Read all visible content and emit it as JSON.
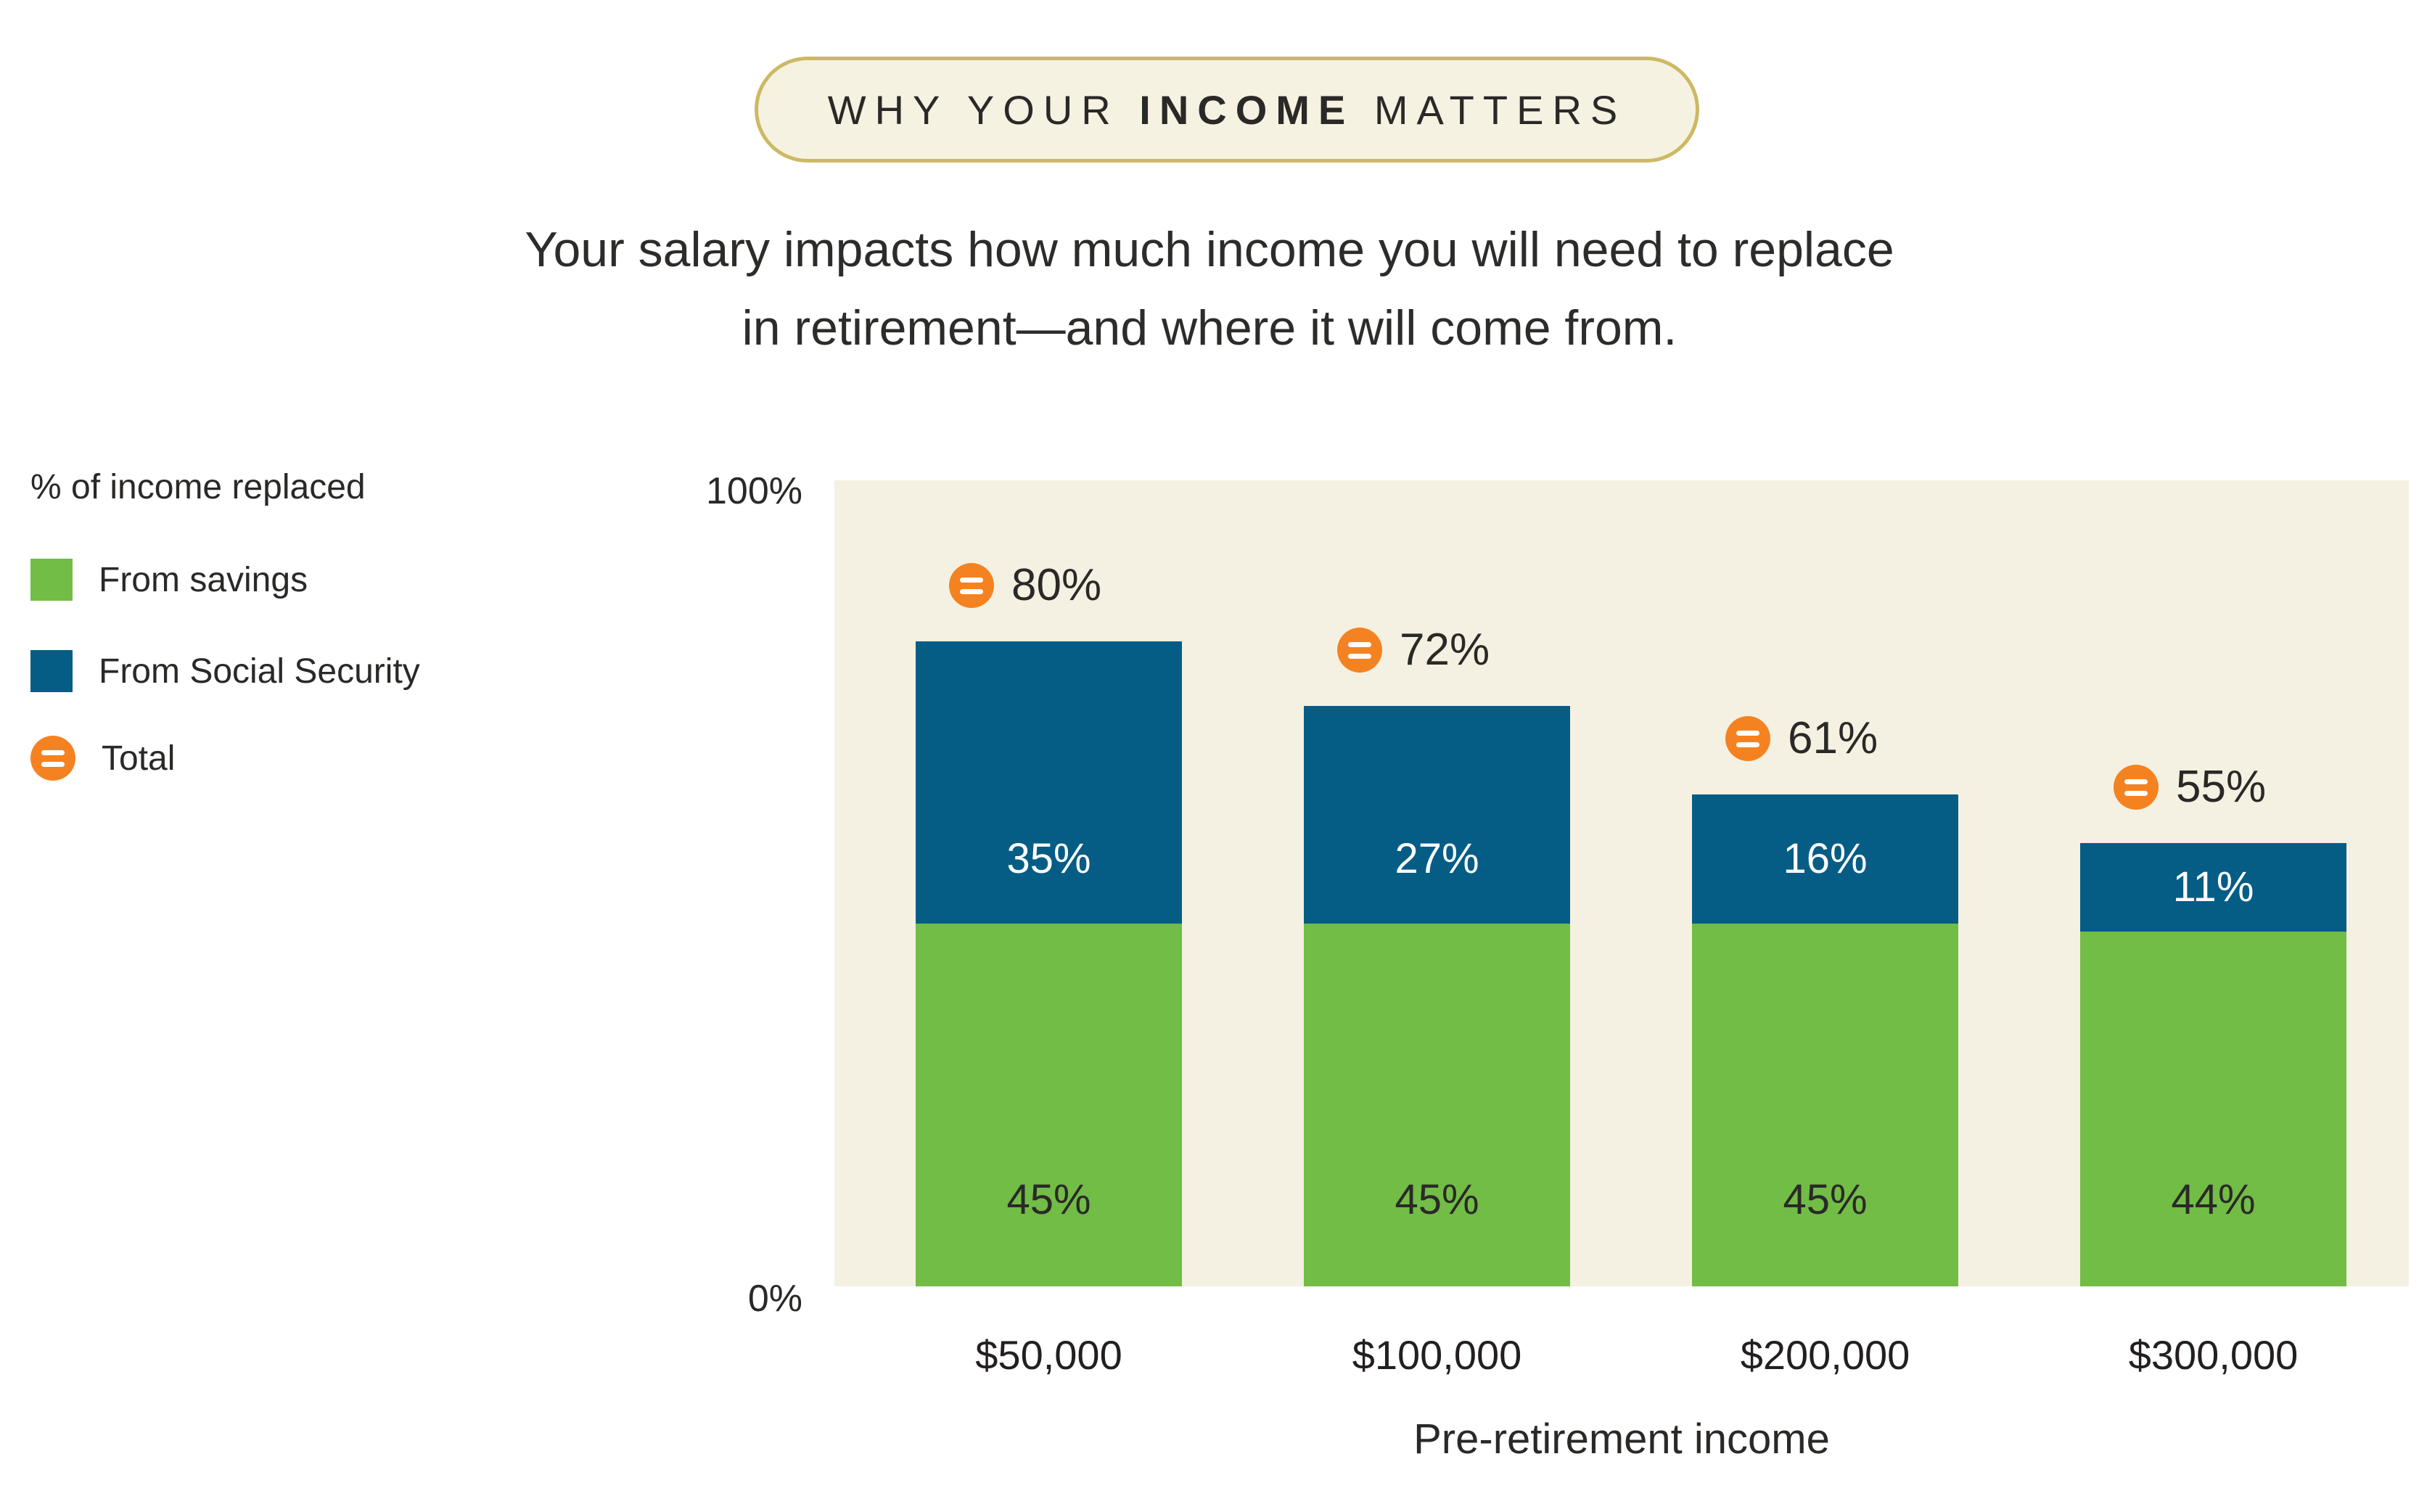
{
  "badge": {
    "prefix": "WHY YOUR ",
    "emphasis": "INCOME",
    "suffix": " MATTERS"
  },
  "headline": {
    "line1": "Your salary impacts how much income you will need to replace",
    "line2": "in retirement—and where it will come from."
  },
  "legend": {
    "title": "% of income replaced",
    "items": [
      {
        "label": "From savings",
        "swatch": "square",
        "color": "#71bd46"
      },
      {
        "label": "From Social Security",
        "swatch": "square",
        "color": "#055d85"
      },
      {
        "label": "Total",
        "swatch": "equals-circle",
        "color": "#f58220"
      }
    ]
  },
  "chart_data": {
    "type": "bar",
    "subtype": "stacked-bar",
    "categories": [
      "$50,000",
      "$100,000",
      "$200,000",
      "$300,000"
    ],
    "series": [
      {
        "name": "From savings",
        "color": "#71bd46",
        "values": [
          45,
          45,
          45,
          44
        ],
        "labels": [
          "45%",
          "45%",
          "45%",
          "44%"
        ]
      },
      {
        "name": "From Social Security",
        "color": "#055d85",
        "values": [
          35,
          27,
          16,
          11
        ],
        "labels": [
          "35%",
          "27%",
          "16%",
          "11%"
        ]
      }
    ],
    "totals": {
      "name": "Total",
      "color": "#f58220",
      "values": [
        80,
        72,
        61,
        55
      ],
      "labels": [
        "80%",
        "72%",
        "61%",
        "55%"
      ]
    },
    "y_axis": {
      "min": 0,
      "max": 100,
      "min_label": "0%",
      "max_label": "100%"
    },
    "xlabel": "Pre-retirement income",
    "ylabel": "% of income replaced",
    "grid": false,
    "legend_position": "left",
    "plot_background": "#f5f1e2"
  },
  "colors": {
    "green": "#71bd46",
    "blue": "#055d85",
    "orange": "#f58220",
    "plot_cream": "#f5f1e2",
    "badge_cream": "#f5f2e1",
    "badge_gold_border": "#cdb963",
    "text_dark": "#2b2927",
    "label_on_blue": "#ffffff"
  }
}
